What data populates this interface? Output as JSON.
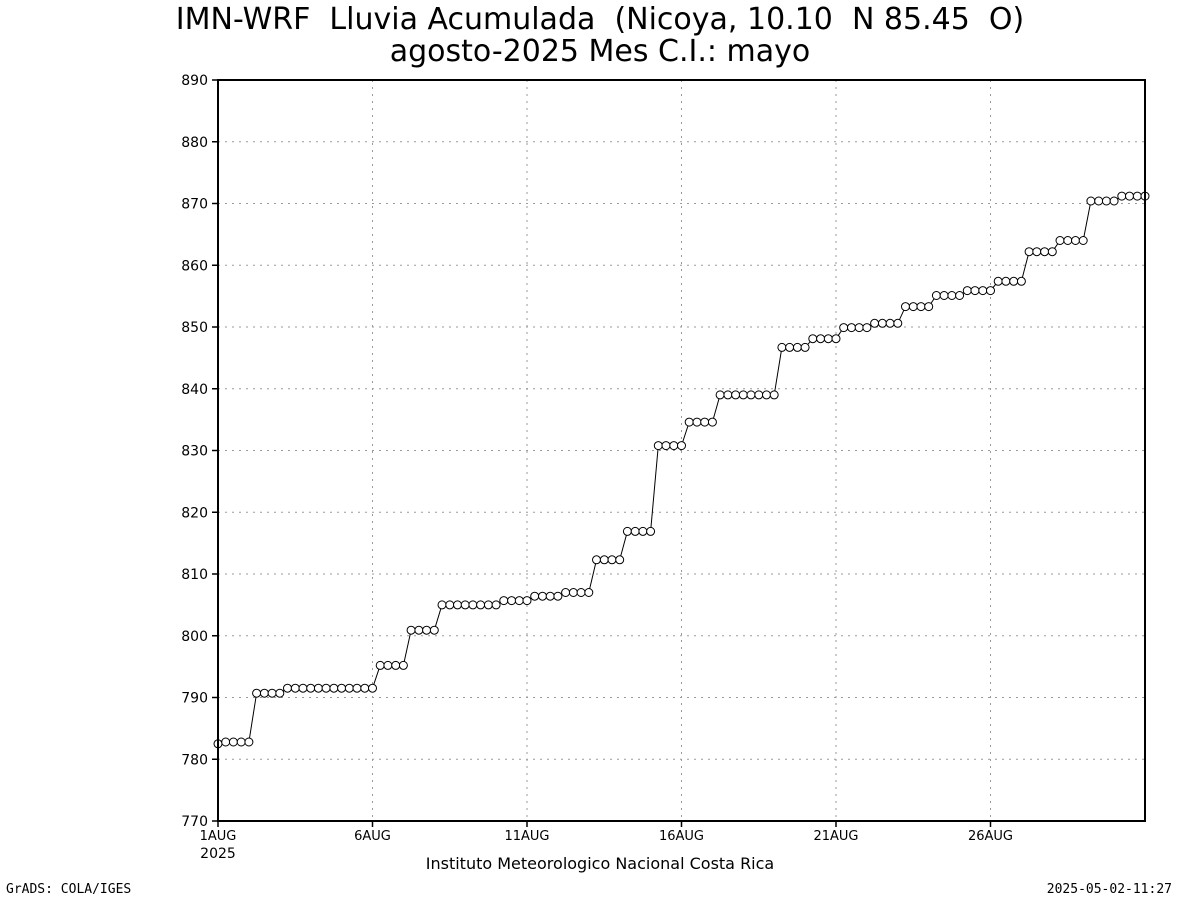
{
  "chart_data": {
    "type": "line",
    "title": "IMN-WRF  Lluvia Acumulada  (Nicoya, 10.10  N 85.45  O)",
    "subtitle": "agosto-2025 Mes C.I.: mayo",
    "xlabel": "",
    "ylabel": "",
    "ylim": [
      770,
      890
    ],
    "yticks": [
      "770",
      "780",
      "790",
      "800",
      "810",
      "820",
      "830",
      "840",
      "850",
      "860",
      "870",
      "880",
      "890"
    ],
    "xlim": [
      1,
      31
    ],
    "xticks": [
      {
        "day": 1,
        "label": "1AUG",
        "sublabel": "2025"
      },
      {
        "day": 6,
        "label": "6AUG"
      },
      {
        "day": 11,
        "label": "11AUG"
      },
      {
        "day": 16,
        "label": "16AUG"
      },
      {
        "day": 21,
        "label": "21AUG"
      },
      {
        "day": 26,
        "label": "26AUG"
      }
    ],
    "grid": true,
    "marker": "open-circle",
    "x_step_days": 0.25,
    "x_start": "2025-08-01",
    "values": [
      782.5,
      782.8,
      782.8,
      782.8,
      782.8,
      790.7,
      790.7,
      790.7,
      790.7,
      791.5,
      791.5,
      791.5,
      791.5,
      791.5,
      791.5,
      791.5,
      791.5,
      791.5,
      791.5,
      791.5,
      791.5,
      795.2,
      795.2,
      795.2,
      795.2,
      800.9,
      800.9,
      800.9,
      800.9,
      805.0,
      805.0,
      805.0,
      805.0,
      805.0,
      805.0,
      805.0,
      805.0,
      805.7,
      805.7,
      805.7,
      805.7,
      806.4,
      806.4,
      806.4,
      806.4,
      807.0,
      807.0,
      807.0,
      807.0,
      812.3,
      812.3,
      812.3,
      812.3,
      816.9,
      816.9,
      816.9,
      816.9,
      830.8,
      830.8,
      830.8,
      830.8,
      834.6,
      834.6,
      834.6,
      834.6,
      839.0,
      839.0,
      839.0,
      839.0,
      839.0,
      839.0,
      839.0,
      839.0,
      846.7,
      846.7,
      846.7,
      846.7,
      848.1,
      848.1,
      848.1,
      848.1,
      849.9,
      849.9,
      849.9,
      849.9,
      850.6,
      850.6,
      850.6,
      850.6,
      853.3,
      853.3,
      853.3,
      853.3,
      855.1,
      855.1,
      855.1,
      855.1,
      855.9,
      855.9,
      855.9,
      855.9,
      857.4,
      857.4,
      857.4,
      857.4,
      862.2,
      862.2,
      862.2,
      862.2,
      864.0,
      864.0,
      864.0,
      864.0,
      870.4,
      870.4,
      870.4,
      870.4,
      871.2,
      871.2,
      871.2,
      871.2
    ]
  },
  "credit": "Instituto Meteorologico Nacional Costa Rica",
  "footer_left": "GrADS: COLA/IGES",
  "footer_right": "2025-05-02-11:27"
}
